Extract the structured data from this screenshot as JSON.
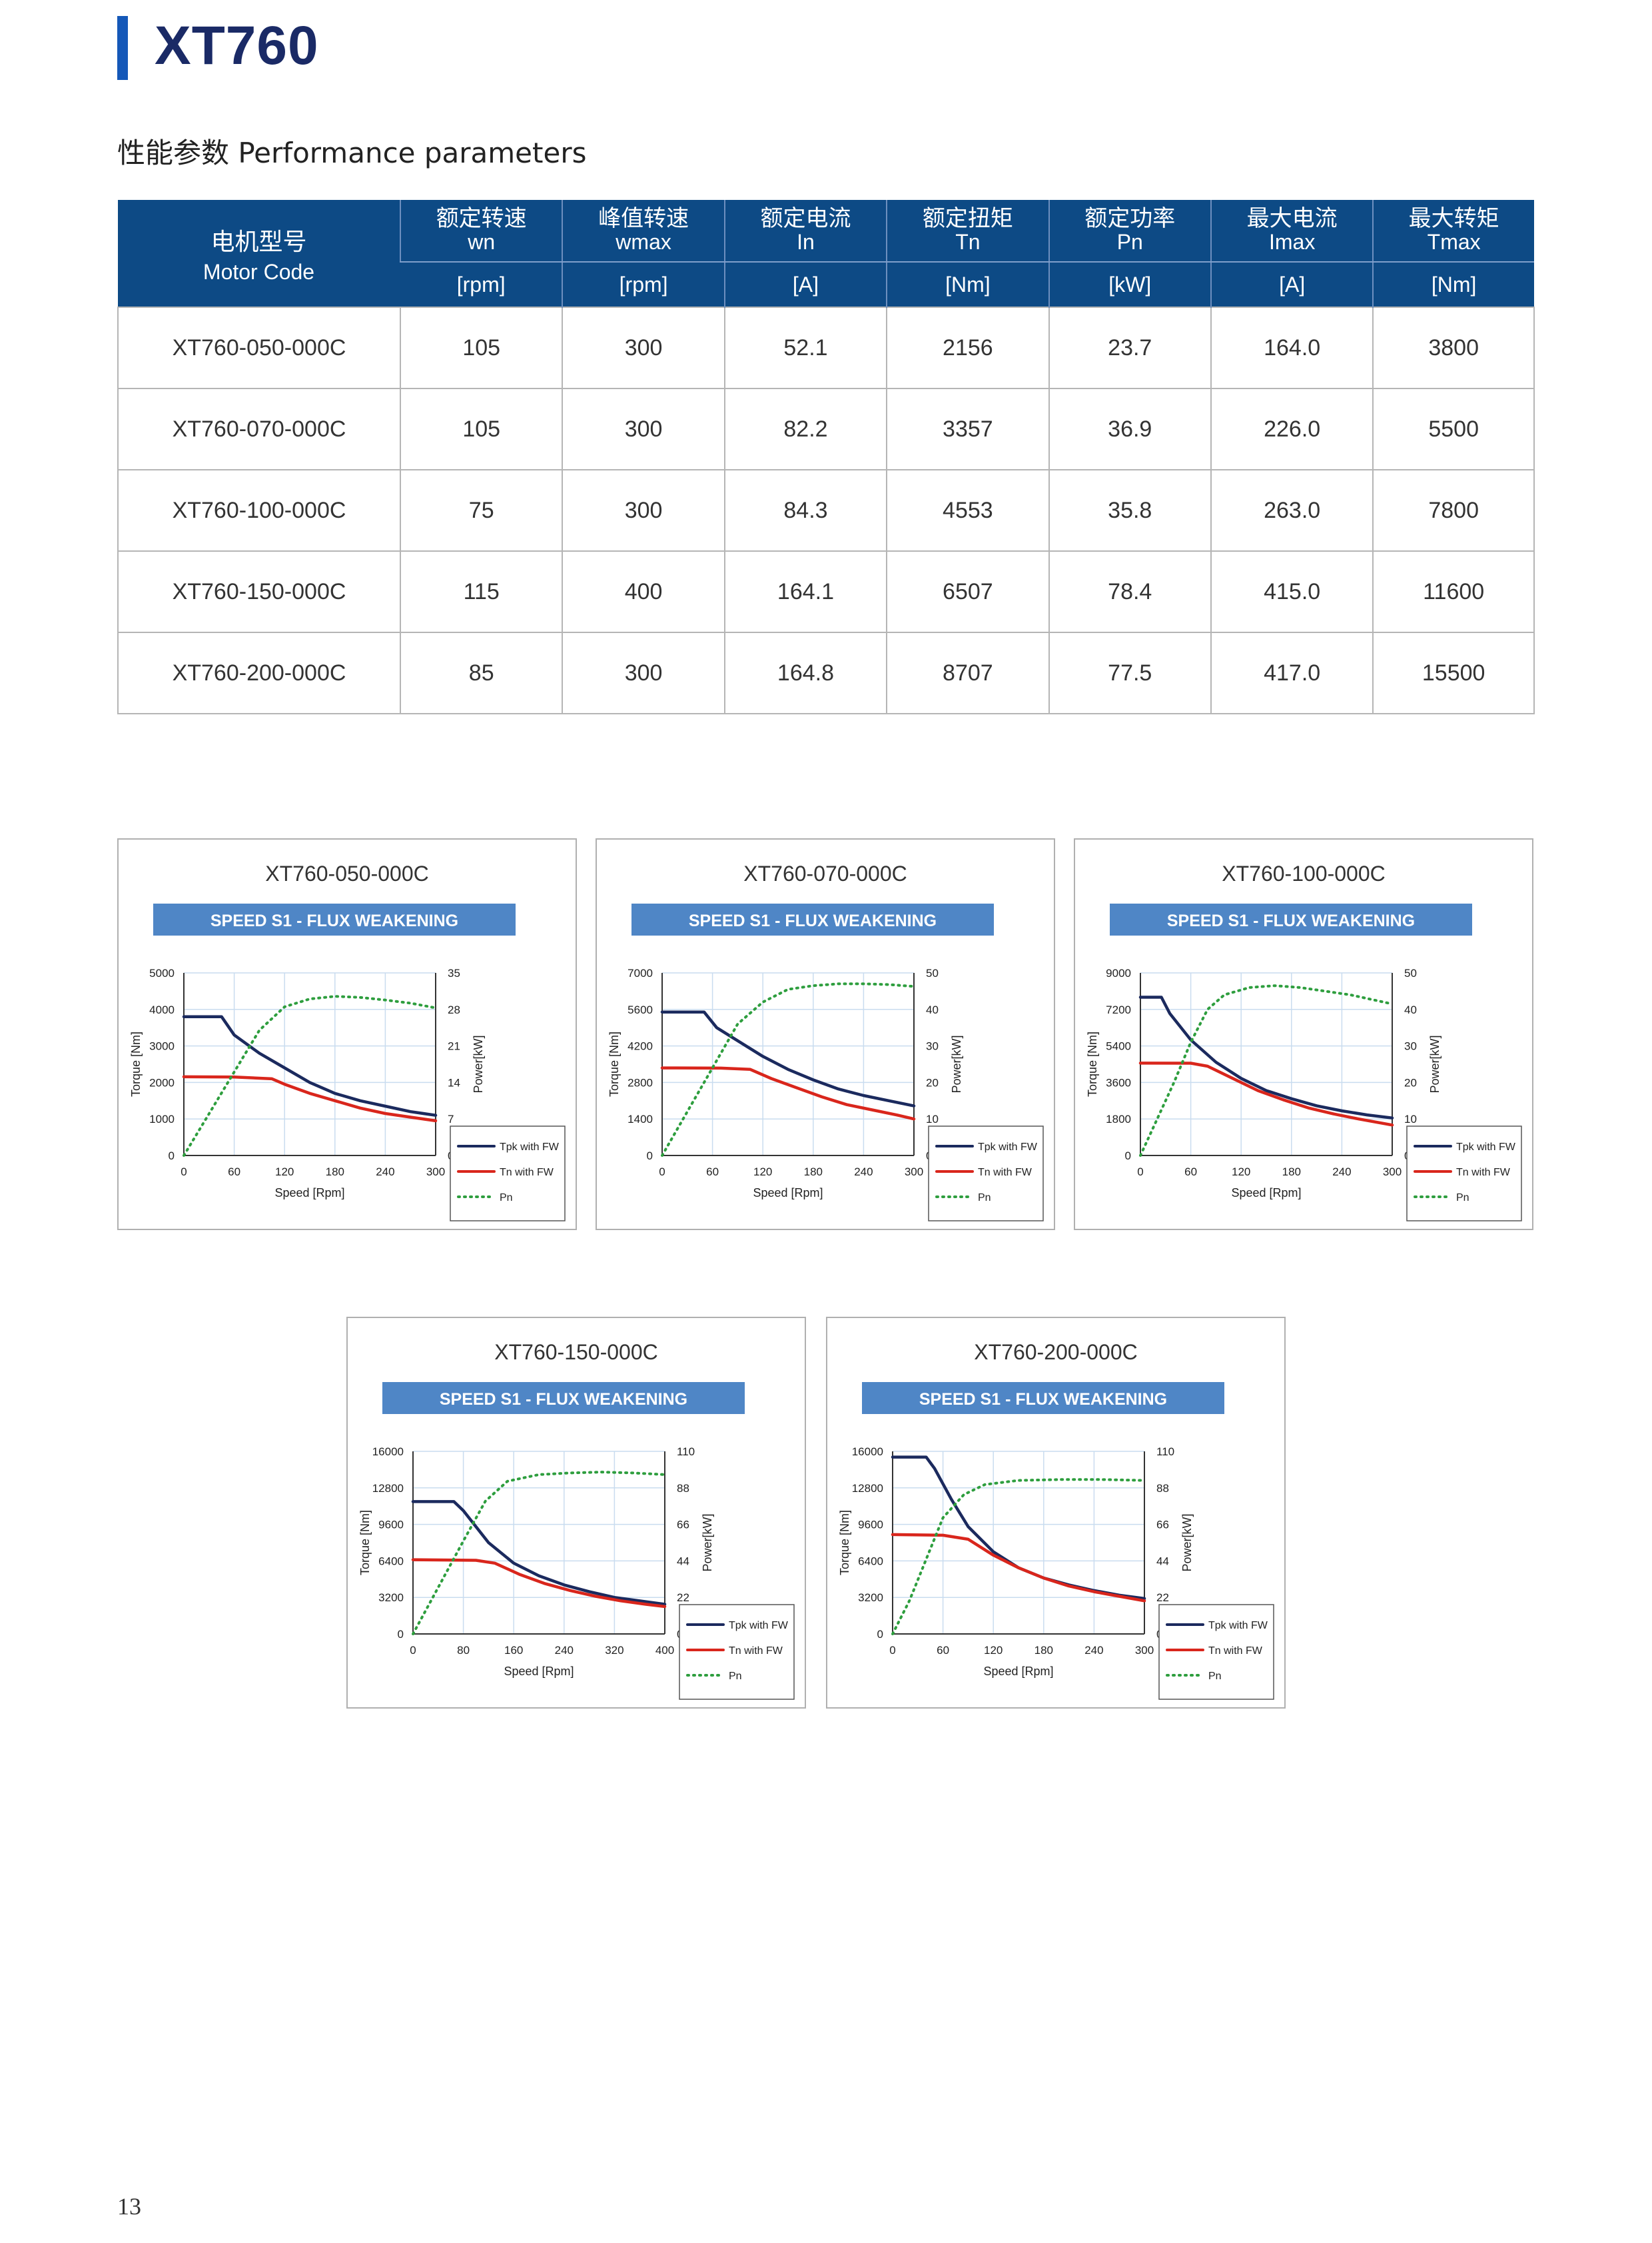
{
  "header": {
    "title": "XT760"
  },
  "section": {
    "subtitle": "性能参数 Performance parameters"
  },
  "table": {
    "code_header_zh": "电机型号",
    "code_header_en": "Motor Code",
    "columns": [
      {
        "zh": "额定转速",
        "sym": "wn",
        "unit": "[rpm]"
      },
      {
        "zh": "峰值转速",
        "sym": "wmax",
        "unit": "[rpm]"
      },
      {
        "zh": "额定电流",
        "sym": "In",
        "unit": "[A]"
      },
      {
        "zh": "额定扭矩",
        "sym": "Tn",
        "unit": "[Nm]"
      },
      {
        "zh": "额定功率",
        "sym": "Pn",
        "unit": "[kW]"
      },
      {
        "zh": "最大电流",
        "sym": "Imax",
        "unit": "[A]"
      },
      {
        "zh": "最大转矩",
        "sym": "Tmax",
        "unit": "[Nm]"
      }
    ],
    "rows": [
      [
        "XT760-050-000C",
        "105",
        "300",
        "52.1",
        "2156",
        "23.7",
        "164.0",
        "3800"
      ],
      [
        "XT760-070-000C",
        "105",
        "300",
        "82.2",
        "3357",
        "36.9",
        "226.0",
        "5500"
      ],
      [
        "XT760-100-000C",
        "75",
        "300",
        "84.3",
        "4553",
        "35.8",
        "263.0",
        "7800"
      ],
      [
        "XT760-150-000C",
        "115",
        "400",
        "164.1",
        "6507",
        "78.4",
        "415.0",
        "11600"
      ],
      [
        "XT760-200-000C",
        "85",
        "300",
        "164.8",
        "8707",
        "77.5",
        "417.0",
        "15500"
      ]
    ]
  },
  "chart_data": [
    {
      "type": "line",
      "title": "XT760-050-000C",
      "subtitle": "SPEED S1 - FLUX WEAKENING",
      "xlabel": "Speed [Rpm]",
      "ylabel": "Torque [Nm]",
      "y2label": "Power[kW]",
      "x_ticks": [
        "0",
        "60",
        "120",
        "180",
        "240",
        "300"
      ],
      "y_ticks": [
        "0",
        "1000",
        "2000",
        "3000",
        "4000",
        "5000"
      ],
      "y2_ticks": [
        "0",
        "7",
        "14",
        "21",
        "28",
        "35"
      ],
      "xlim": [
        0,
        300
      ],
      "ylim": [
        0,
        5000
      ],
      "y2lim": [
        0,
        35
      ],
      "grid": true,
      "legend_position": "right-bottom",
      "series": [
        {
          "name": "Tpk with FW",
          "axis": "left",
          "color": "#1b2a5e",
          "dash": false,
          "points": [
            [
              0,
              3800
            ],
            [
              20,
              3800
            ],
            [
              45,
              3800
            ],
            [
              60,
              3300
            ],
            [
              90,
              2800
            ],
            [
              120,
              2400
            ],
            [
              150,
              2000
            ],
            [
              180,
              1700
            ],
            [
              210,
              1500
            ],
            [
              240,
              1350
            ],
            [
              270,
              1200
            ],
            [
              300,
              1100
            ]
          ]
        },
        {
          "name": "Tn with FW",
          "axis": "left",
          "color": "#d9261c",
          "dash": false,
          "points": [
            [
              0,
              2156
            ],
            [
              60,
              2150
            ],
            [
              105,
              2100
            ],
            [
              120,
              1950
            ],
            [
              150,
              1700
            ],
            [
              180,
              1500
            ],
            [
              210,
              1300
            ],
            [
              240,
              1150
            ],
            [
              270,
              1050
            ],
            [
              300,
              950
            ]
          ]
        },
        {
          "name": "Pn",
          "axis": "right",
          "color": "#2e9e3e",
          "dash": true,
          "points": [
            [
              0,
              0
            ],
            [
              30,
              8
            ],
            [
              60,
              16
            ],
            [
              90,
              24
            ],
            [
              120,
              28.5
            ],
            [
              150,
              30
            ],
            [
              180,
              30.5
            ],
            [
              210,
              30.3
            ],
            [
              240,
              29.8
            ],
            [
              270,
              29.2
            ],
            [
              300,
              28.3
            ]
          ]
        }
      ]
    },
    {
      "type": "line",
      "title": "XT760-070-000C",
      "subtitle": "SPEED S1 - FLUX WEAKENING",
      "xlabel": "Speed [Rpm]",
      "ylabel": "Torque [Nm]",
      "y2label": "Power[kW]",
      "x_ticks": [
        "0",
        "60",
        "120",
        "180",
        "240",
        "300"
      ],
      "y_ticks": [
        "0",
        "1400",
        "2800",
        "4200",
        "5600",
        "7000"
      ],
      "y2_ticks": [
        "0",
        "10",
        "20",
        "30",
        "40",
        "50"
      ],
      "xlim": [
        0,
        300
      ],
      "ylim": [
        0,
        7000
      ],
      "y2lim": [
        0,
        50
      ],
      "grid": true,
      "legend_position": "right-bottom",
      "series": [
        {
          "name": "Tpk with FW",
          "axis": "left",
          "color": "#1b2a5e",
          "dash": false,
          "points": [
            [
              0,
              5500
            ],
            [
              50,
              5500
            ],
            [
              65,
              4900
            ],
            [
              90,
              4400
            ],
            [
              120,
              3800
            ],
            [
              150,
              3300
            ],
            [
              180,
              2900
            ],
            [
              210,
              2550
            ],
            [
              240,
              2300
            ],
            [
              270,
              2100
            ],
            [
              300,
              1900
            ]
          ]
        },
        {
          "name": "Tn with FW",
          "axis": "left",
          "color": "#d9261c",
          "dash": false,
          "points": [
            [
              0,
              3357
            ],
            [
              70,
              3350
            ],
            [
              105,
              3300
            ],
            [
              130,
              2950
            ],
            [
              160,
              2600
            ],
            [
              190,
              2250
            ],
            [
              220,
              1950
            ],
            [
              250,
              1750
            ],
            [
              280,
              1550
            ],
            [
              300,
              1400
            ]
          ]
        },
        {
          "name": "Pn",
          "axis": "right",
          "color": "#2e9e3e",
          "dash": true,
          "points": [
            [
              0,
              0
            ],
            [
              30,
              12
            ],
            [
              60,
              24
            ],
            [
              90,
              36
            ],
            [
              120,
              42
            ],
            [
              150,
              45.5
            ],
            [
              180,
              46.5
            ],
            [
              210,
              47
            ],
            [
              240,
              47
            ],
            [
              270,
              46.8
            ],
            [
              300,
              46.3
            ]
          ]
        }
      ]
    },
    {
      "type": "line",
      "title": "XT760-100-000C",
      "subtitle": "SPEED S1 - FLUX WEAKENING",
      "xlabel": "Speed [Rpm]",
      "ylabel": "Torque [Nm]",
      "y2label": "Power[kW]",
      "x_ticks": [
        "0",
        "60",
        "120",
        "180",
        "240",
        "300"
      ],
      "y_ticks": [
        "0",
        "1800",
        "3600",
        "5400",
        "7200",
        "9000"
      ],
      "y2_ticks": [
        "0",
        "10",
        "20",
        "30",
        "40",
        "50"
      ],
      "xlim": [
        0,
        300
      ],
      "ylim": [
        0,
        9000
      ],
      "y2lim": [
        0,
        50
      ],
      "grid": true,
      "legend_position": "right-bottom",
      "series": [
        {
          "name": "Tpk with FW",
          "axis": "left",
          "color": "#1b2a5e",
          "dash": false,
          "points": [
            [
              0,
              7800
            ],
            [
              25,
              7800
            ],
            [
              35,
              7000
            ],
            [
              60,
              5700
            ],
            [
              90,
              4600
            ],
            [
              120,
              3800
            ],
            [
              150,
              3200
            ],
            [
              180,
              2800
            ],
            [
              210,
              2450
            ],
            [
              240,
              2200
            ],
            [
              270,
              2000
            ],
            [
              300,
              1850
            ]
          ]
        },
        {
          "name": "Tn with FW",
          "axis": "left",
          "color": "#d9261c",
          "dash": false,
          "points": [
            [
              0,
              4553
            ],
            [
              60,
              4550
            ],
            [
              80,
              4400
            ],
            [
              110,
              3800
            ],
            [
              140,
              3200
            ],
            [
              170,
              2750
            ],
            [
              200,
              2350
            ],
            [
              230,
              2050
            ],
            [
              260,
              1800
            ],
            [
              300,
              1500
            ]
          ]
        },
        {
          "name": "Pn",
          "axis": "right",
          "color": "#2e9e3e",
          "dash": true,
          "points": [
            [
              0,
              0
            ],
            [
              20,
              10
            ],
            [
              40,
              20
            ],
            [
              60,
              31
            ],
            [
              80,
              40
            ],
            [
              100,
              44
            ],
            [
              130,
              46
            ],
            [
              160,
              46.5
            ],
            [
              190,
              46
            ],
            [
              220,
              45
            ],
            [
              250,
              44
            ],
            [
              280,
              42.5
            ],
            [
              300,
              41.5
            ]
          ]
        }
      ]
    },
    {
      "type": "line",
      "title": "XT760-150-000C",
      "subtitle": "SPEED S1 - FLUX WEAKENING",
      "xlabel": "Speed [Rpm]",
      "ylabel": "Torque [Nm]",
      "y2label": "Power[kW]",
      "x_ticks": [
        "0",
        "80",
        "160",
        "240",
        "320",
        "400"
      ],
      "y_ticks": [
        "0",
        "3200",
        "6400",
        "9600",
        "12800",
        "16000"
      ],
      "y2_ticks": [
        "0",
        "22",
        "44",
        "66",
        "88",
        "110"
      ],
      "xlim": [
        0,
        400
      ],
      "ylim": [
        0,
        16000
      ],
      "y2lim": [
        0,
        110
      ],
      "grid": true,
      "legend_position": "right-bottom",
      "series": [
        {
          "name": "Tpk with FW",
          "axis": "left",
          "color": "#1b2a5e",
          "dash": false,
          "points": [
            [
              0,
              11600
            ],
            [
              65,
              11600
            ],
            [
              80,
              10800
            ],
            [
              120,
              8000
            ],
            [
              160,
              6200
            ],
            [
              200,
              5100
            ],
            [
              240,
              4300
            ],
            [
              280,
              3700
            ],
            [
              320,
              3200
            ],
            [
              360,
              2900
            ],
            [
              400,
              2600
            ]
          ]
        },
        {
          "name": "Tn with FW",
          "axis": "left",
          "color": "#d9261c",
          "dash": false,
          "points": [
            [
              0,
              6507
            ],
            [
              100,
              6450
            ],
            [
              130,
              6200
            ],
            [
              170,
              5200
            ],
            [
              210,
              4400
            ],
            [
              250,
              3800
            ],
            [
              290,
              3300
            ],
            [
              330,
              2900
            ],
            [
              370,
              2600
            ],
            [
              400,
              2400
            ]
          ]
        },
        {
          "name": "Pn",
          "axis": "right",
          "color": "#2e9e3e",
          "dash": true,
          "points": [
            [
              0,
              0
            ],
            [
              40,
              28
            ],
            [
              80,
              56
            ],
            [
              115,
              80
            ],
            [
              150,
              92
            ],
            [
              200,
              96
            ],
            [
              250,
              97
            ],
            [
              300,
              97.5
            ],
            [
              350,
              97
            ],
            [
              400,
              96
            ]
          ]
        }
      ]
    },
    {
      "type": "line",
      "title": "XT760-200-000C",
      "subtitle": "SPEED S1 - FLUX WEAKENING",
      "xlabel": "Speed [Rpm]",
      "ylabel": "Torque [Nm]",
      "y2label": "Power[kW]",
      "x_ticks": [
        "0",
        "60",
        "120",
        "180",
        "240",
        "300"
      ],
      "y_ticks": [
        "0",
        "3200",
        "6400",
        "9600",
        "12800",
        "16000"
      ],
      "y2_ticks": [
        "0",
        "22",
        "44",
        "66",
        "88",
        "110"
      ],
      "xlim": [
        0,
        300
      ],
      "ylim": [
        0,
        16000
      ],
      "y2lim": [
        0,
        110
      ],
      "grid": true,
      "legend_position": "right-bottom",
      "series": [
        {
          "name": "Tpk with FW",
          "axis": "left",
          "color": "#1b2a5e",
          "dash": false,
          "points": [
            [
              0,
              15500
            ],
            [
              40,
              15500
            ],
            [
              50,
              14500
            ],
            [
              70,
              11800
            ],
            [
              90,
              9400
            ],
            [
              120,
              7200
            ],
            [
              150,
              5800
            ],
            [
              180,
              4900
            ],
            [
              210,
              4300
            ],
            [
              240,
              3800
            ],
            [
              270,
              3400
            ],
            [
              300,
              3100
            ]
          ]
        },
        {
          "name": "Tn with FW",
          "axis": "left",
          "color": "#d9261c",
          "dash": false,
          "points": [
            [
              0,
              8707
            ],
            [
              60,
              8650
            ],
            [
              90,
              8300
            ],
            [
              120,
              6900
            ],
            [
              150,
              5800
            ],
            [
              180,
              4900
            ],
            [
              210,
              4200
            ],
            [
              240,
              3700
            ],
            [
              270,
              3300
            ],
            [
              300,
              2900
            ]
          ]
        },
        {
          "name": "Pn",
          "axis": "right",
          "color": "#2e9e3e",
          "dash": true,
          "points": [
            [
              0,
              0
            ],
            [
              20,
              20
            ],
            [
              40,
              45
            ],
            [
              60,
              70
            ],
            [
              85,
              84
            ],
            [
              110,
              90
            ],
            [
              150,
              92.5
            ],
            [
              200,
              93
            ],
            [
              250,
              93
            ],
            [
              300,
              92.5
            ]
          ]
        }
      ]
    }
  ],
  "footer": {
    "page_number": "13"
  }
}
